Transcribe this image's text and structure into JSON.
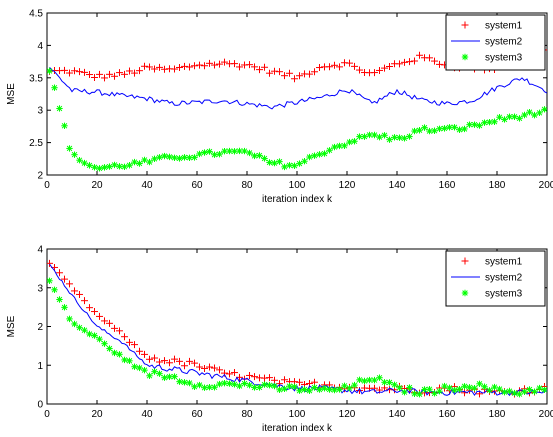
{
  "chart_data": [
    {
      "type": "line",
      "title": "",
      "xlabel": "iteration index k",
      "ylabel": "MSE",
      "xlim": [
        0,
        200
      ],
      "ylim": [
        2,
        4.5
      ],
      "xticks": [
        "0",
        "20",
        "40",
        "60",
        "80",
        "100",
        "120",
        "140",
        "160",
        "180",
        "200"
      ],
      "yticks": [
        "2",
        "2.5",
        "3",
        "3.5",
        "4",
        "4.5"
      ],
      "legend_position": "top-right",
      "x": [
        0,
        10,
        20,
        30,
        40,
        50,
        60,
        70,
        80,
        90,
        100,
        110,
        120,
        130,
        140,
        150,
        160,
        170,
        180,
        190,
        200
      ],
      "series": [
        {
          "name": "system1",
          "marker": "+",
          "color": "#ff0000",
          "values": [
            3.6,
            3.6,
            3.52,
            3.55,
            3.65,
            3.62,
            3.7,
            3.72,
            3.7,
            3.6,
            3.5,
            3.68,
            3.72,
            3.55,
            3.72,
            3.82,
            3.7,
            3.66,
            3.65,
            3.78,
            3.95
          ]
        },
        {
          "name": "system2",
          "marker": "line",
          "color": "#0000ff",
          "values": [
            3.7,
            3.3,
            3.28,
            3.22,
            3.18,
            3.1,
            3.12,
            3.15,
            3.1,
            3.05,
            3.12,
            3.2,
            3.32,
            3.1,
            3.3,
            3.15,
            3.1,
            3.15,
            3.35,
            3.5,
            3.3
          ]
        },
        {
          "name": "system3",
          "marker": "*",
          "color": "#00ff00",
          "values": [
            3.75,
            2.3,
            2.1,
            2.15,
            2.2,
            2.28,
            2.3,
            2.35,
            2.35,
            2.18,
            2.15,
            2.35,
            2.5,
            2.62,
            2.55,
            2.7,
            2.7,
            2.75,
            2.85,
            2.92,
            2.98
          ]
        }
      ]
    },
    {
      "type": "line",
      "title": "",
      "xlabel": "iteration index k",
      "ylabel": "MSE",
      "xlim": [
        0,
        200
      ],
      "ylim": [
        0,
        4
      ],
      "xticks": [
        "0",
        "20",
        "40",
        "60",
        "80",
        "100",
        "120",
        "140",
        "160",
        "180",
        "200"
      ],
      "yticks": [
        "0",
        "1",
        "2",
        "3",
        "4"
      ],
      "legend_position": "top-right",
      "x": [
        0,
        10,
        20,
        30,
        40,
        50,
        60,
        70,
        80,
        90,
        100,
        110,
        120,
        130,
        140,
        150,
        160,
        170,
        180,
        190,
        200
      ],
      "series": [
        {
          "name": "system1",
          "marker": "+",
          "color": "#ff0000",
          "values": [
            3.7,
            3.0,
            2.3,
            1.8,
            1.2,
            1.1,
            1.0,
            0.8,
            0.7,
            0.6,
            0.5,
            0.5,
            0.45,
            0.4,
            0.4,
            0.35,
            0.4,
            0.35,
            0.3,
            0.35,
            0.4
          ]
        },
        {
          "name": "system2",
          "marker": "line",
          "color": "#0000ff",
          "values": [
            3.7,
            2.8,
            2.0,
            1.6,
            1.0,
            0.9,
            0.8,
            0.7,
            0.6,
            0.5,
            0.4,
            0.4,
            0.35,
            0.3,
            0.35,
            0.3,
            0.3,
            0.3,
            0.3,
            0.3,
            0.3
          ]
        },
        {
          "name": "system3",
          "marker": "*",
          "color": "#00ff00",
          "values": [
            3.3,
            2.1,
            1.7,
            1.2,
            0.8,
            0.7,
            0.5,
            0.5,
            0.5,
            0.4,
            0.4,
            0.35,
            0.4,
            0.7,
            0.4,
            0.3,
            0.4,
            0.5,
            0.35,
            0.3,
            0.45
          ]
        }
      ]
    }
  ]
}
